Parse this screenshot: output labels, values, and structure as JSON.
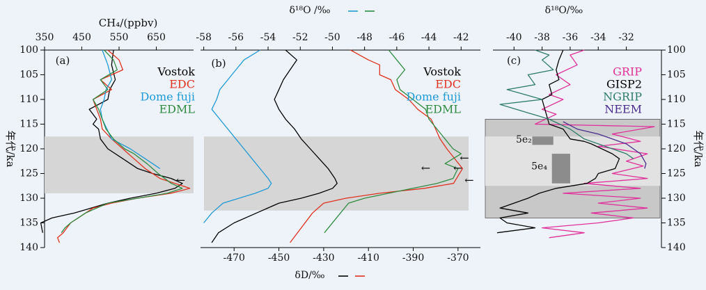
{
  "figure": {
    "left_ylabel": "年代/ka",
    "right_ylabel": "年代/ka",
    "y_ticks": [
      100,
      105,
      110,
      115,
      120,
      125,
      130,
      135,
      140
    ],
    "ylim": [
      100,
      140
    ]
  },
  "chart_data": [
    {
      "panel": "a",
      "type": "line",
      "panel_label": "(a)",
      "xlabel": "CH₄/(ppbv)",
      "xlim": [
        350,
        750
      ],
      "x_ticks": [
        350,
        450,
        550,
        650
      ],
      "x_tick_labels": [
        "350",
        "450",
        "550",
        "650"
      ],
      "shaded_bands": [
        {
          "y": [
            117.5,
            129
          ],
          "color": "#d6d6d6"
        }
      ],
      "annotations": [
        {
          "text": "←",
          "x": 715,
          "y": 126.5
        }
      ],
      "series": [
        {
          "name": "Vostok",
          "color": "#000000",
          "x": [
            535,
            530,
            540,
            525,
            520,
            470,
            490,
            480,
            495,
            500,
            520,
            560,
            600,
            640,
            690,
            720,
            700,
            650,
            580,
            520,
            430,
            370,
            340,
            345
          ],
          "y": [
            100,
            103,
            106,
            108,
            110,
            112,
            114,
            115,
            116,
            118,
            120,
            122,
            124,
            125,
            126,
            127,
            128,
            129,
            130,
            131,
            133,
            134,
            135,
            137
          ]
        },
        {
          "name": "EDC",
          "color": "#e0301e",
          "x": [
            520,
            550,
            560,
            500,
            530,
            480,
            490,
            500,
            505,
            530,
            560,
            590,
            620,
            660,
            700,
            740,
            690,
            600,
            530,
            480,
            440,
            420,
            400,
            385,
            390
          ],
          "y": [
            100,
            102,
            104,
            106,
            108,
            110,
            112,
            114,
            116,
            118,
            120,
            122,
            124,
            126,
            127,
            128,
            129,
            130,
            131,
            132,
            134,
            135,
            137,
            138,
            139
          ]
        },
        {
          "name": "Dome fuji",
          "color": "#1e9ad6",
          "x": [
            505,
            520,
            530,
            515,
            510,
            500,
            505,
            530,
            580,
            620,
            660
          ],
          "y": [
            100,
            103,
            106,
            108,
            110,
            112,
            114,
            118,
            120,
            122,
            124
          ]
        },
        {
          "name": "EDML",
          "color": "#2e8b40",
          "x": [
            510,
            535,
            545,
            500,
            520,
            480,
            495,
            505,
            515,
            535,
            565,
            590,
            625,
            655,
            690,
            720,
            680,
            600,
            520,
            460,
            420,
            405,
            395
          ],
          "y": [
            100,
            102,
            104,
            106,
            108,
            110,
            112,
            114,
            116,
            118,
            120,
            121,
            123,
            125,
            127,
            128,
            129,
            130,
            131,
            133,
            135,
            136,
            137
          ]
        }
      ],
      "legend": [
        "Vostok",
        "EDC",
        "Dome fuji",
        "EDML"
      ]
    },
    {
      "panel": "b",
      "type": "line",
      "panel_label": "(b)",
      "top_xlabel": "δ¹⁸O /‰",
      "top_xlim": [
        -58.2,
        -40.8
      ],
      "top_x_ticks": [
        -58,
        -56,
        -54,
        -52,
        -50,
        -48,
        -46,
        -44,
        -42
      ],
      "top_x_tick_labels": [
        "-58",
        "-56",
        "-54",
        "-52",
        "-50",
        "-48",
        "-46",
        "-44",
        "-42"
      ],
      "bottom_xlabel": "δD/‰",
      "bottom_xlim": [
        -485,
        -360
      ],
      "bottom_x_ticks": [
        -470,
        -450,
        -430,
        -410,
        -390,
        -370
      ],
      "bottom_x_tick_labels": [
        "-470",
        "-450",
        "-430",
        "-410",
        "-390",
        "-370"
      ],
      "shaded_bands": [
        {
          "y": [
            117.5,
            132.5
          ],
          "color": "#d6d6d6"
        }
      ],
      "annotations": [
        {
          "text": "←",
          "x": -41.8,
          "y": 122
        },
        {
          "text": "←",
          "x": -44.2,
          "y": 124
        },
        {
          "text": "←",
          "x": -42.2,
          "y": 124
        },
        {
          "text": "←",
          "x": -41.5,
          "y": 126.5
        }
      ],
      "series": [
        {
          "name": "Vostok",
          "color": "#000000",
          "axis": "bottom",
          "x": [
            -447,
            -442,
            -445,
            -448,
            -450,
            -452,
            -450,
            -447,
            -443,
            -440,
            -436,
            -432,
            -428,
            -425,
            -424,
            -426,
            -432,
            -440,
            -450,
            -460,
            -470,
            -477,
            -480
          ],
          "y": [
            100,
            102,
            104,
            106,
            108,
            110,
            112,
            114,
            116,
            118,
            120,
            122,
            124,
            126,
            127,
            128,
            129,
            130,
            131,
            133,
            135,
            137,
            139
          ]
        },
        {
          "name": "EDC",
          "color": "#e0301e",
          "axis": "bottom",
          "x": [
            -418,
            -410,
            -405,
            -405,
            -400,
            -398,
            -392,
            -388,
            -382,
            -380,
            -378,
            -375,
            -368,
            -372,
            -385,
            -405,
            -420,
            -430,
            -435,
            -440,
            -445
          ],
          "y": [
            100,
            102,
            103,
            105,
            106,
            108,
            110,
            112,
            114,
            116,
            118,
            120,
            124,
            127,
            128,
            129,
            130,
            131,
            133,
            136,
            139
          ]
        },
        {
          "name": "Dome fuji",
          "color": "#1e9ad6",
          "axis": "top",
          "x": [
            -54.5,
            -55.5,
            -56,
            -56.5,
            -57,
            -57.2,
            -57.5,
            -57,
            -56.5,
            -56,
            -55.5,
            -55,
            -54.5,
            -54,
            -53.8,
            -54,
            -54.8,
            -55.8,
            -56.8,
            -57.5,
            -58
          ],
          "y": [
            100,
            102,
            104,
            106,
            108,
            110,
            112,
            114,
            116,
            118,
            120,
            122,
            124,
            126,
            127,
            128,
            129,
            130,
            131,
            133,
            135
          ]
        },
        {
          "name": "EDML",
          "color": "#2e8b40",
          "axis": "top",
          "x": [
            -46.5,
            -46,
            -45.5,
            -46,
            -45.8,
            -45,
            -44.2,
            -44,
            -43.5,
            -43,
            -42.5,
            -42,
            -42.5,
            -43,
            -42.2,
            -42.5,
            -43.5,
            -45,
            -46.5,
            -48,
            -49,
            -49.5,
            -50.5
          ],
          "y": [
            100,
            102,
            104,
            106,
            108,
            110,
            112,
            114,
            116,
            118,
            120,
            121,
            122,
            123,
            124,
            126,
            127,
            128,
            129,
            130,
            131,
            133,
            137
          ]
        }
      ],
      "legend": [
        "Vostok",
        "EDC",
        "Dome fuji",
        "EDML"
      ],
      "top_legend_line_colors": [
        "#1e9ad6",
        "#2e8b40"
      ],
      "bottom_legend_line_colors": [
        "#000000",
        "#e0301e"
      ]
    },
    {
      "panel": "c",
      "type": "line",
      "panel_label": "(c)",
      "xlabel": "δ¹⁸O/‰",
      "xlim": [
        -41.5,
        -29.5
      ],
      "x_ticks": [
        -40,
        -38,
        -36,
        -34,
        -32
      ],
      "x_tick_labels": [
        "-40",
        "-38",
        "-36",
        "-34",
        "-32"
      ],
      "shaded_bands": [
        {
          "y": [
            114,
            134
          ],
          "x": [
            -41.5,
            -29.5
          ],
          "color": "#c8c8c8"
        },
        {
          "y": [
            117.5,
            127.5
          ],
          "x": [
            -41.5,
            -29.5
          ],
          "color": "#e2e2e2"
        },
        {
          "y": [
            117.5,
            119.2
          ],
          "x": [
            -38.7,
            -37.2
          ],
          "color": "#8c8c8c"
        },
        {
          "y": [
            121,
            127
          ],
          "x": [
            -37.3,
            -36
          ],
          "color": "#8c8c8c"
        }
      ],
      "annotations": [
        {
          "text": "5e₂",
          "x": -39.3,
          "y": 118.2
        },
        {
          "text": "5e₄",
          "x": -38.2,
          "y": 123.6
        }
      ],
      "series": [
        {
          "name": "GRIP",
          "color": "#e0309a",
          "x": [
            -35,
            -36,
            -35.5,
            -37,
            -36,
            -37.5,
            -36.5,
            -38,
            -37,
            -38.5,
            -30,
            -33,
            -31,
            -34,
            -30.5,
            -32,
            -30.8,
            -33,
            -30.5,
            -35,
            -31,
            -36.5,
            -31,
            -34,
            -30.5,
            -34.5,
            -31.5,
            -34,
            -38,
            -35,
            -37.5
          ],
          "y": [
            100,
            101,
            103,
            105,
            107,
            109,
            110,
            112,
            113,
            115,
            115.5,
            117,
            118.5,
            119.5,
            121,
            122.5,
            123.5,
            125,
            126,
            127,
            128,
            129,
            130,
            131,
            132,
            133,
            134,
            135,
            136,
            137,
            138
          ]
        },
        {
          "name": "GISP2",
          "color": "#000000",
          "x": [
            -36.5,
            -36.8,
            -37,
            -36.8,
            -37.5,
            -37.3,
            -38,
            -37.8,
            -37.5,
            -36.5,
            -36,
            -35,
            -34.5,
            -33,
            -32.5,
            -32.8,
            -34,
            -34.2,
            -34.8,
            -37,
            -38.2,
            -39,
            -40,
            -41,
            -39,
            -41,
            -40.5,
            -38.5,
            -41.2
          ],
          "y": [
            100,
            102,
            104,
            106,
            107,
            109,
            110,
            112,
            115,
            116,
            118,
            118.5,
            119,
            121,
            122,
            124,
            125,
            126,
            127,
            128,
            129,
            130,
            131,
            132,
            133,
            134,
            135,
            136,
            137
          ]
        },
        {
          "name": "NGRIP",
          "color": "#2e7d6a",
          "x": [
            -38.5,
            -37.5,
            -38,
            -37.2,
            -39,
            -38.5,
            -40.5,
            -38,
            -41,
            -37.5,
            -36,
            -35,
            -33,
            -32,
            -31.5
          ],
          "y": [
            100,
            101,
            102,
            104,
            105,
            107,
            108,
            110,
            111,
            114,
            116,
            118,
            120,
            121,
            122
          ]
        },
        {
          "name": "NEEM",
          "color": "#4a2c8c",
          "x": [
            -36.5,
            -35.5,
            -34,
            -33,
            -32,
            -31.5,
            -31,
            -30.8,
            -30.6,
            -30.7
          ],
          "y": [
            114.5,
            116,
            117,
            118,
            119,
            120,
            121,
            122,
            123,
            124
          ]
        }
      ],
      "legend": [
        "GRIP",
        "GISP2",
        "NGRIP",
        "NEEM"
      ]
    }
  ]
}
